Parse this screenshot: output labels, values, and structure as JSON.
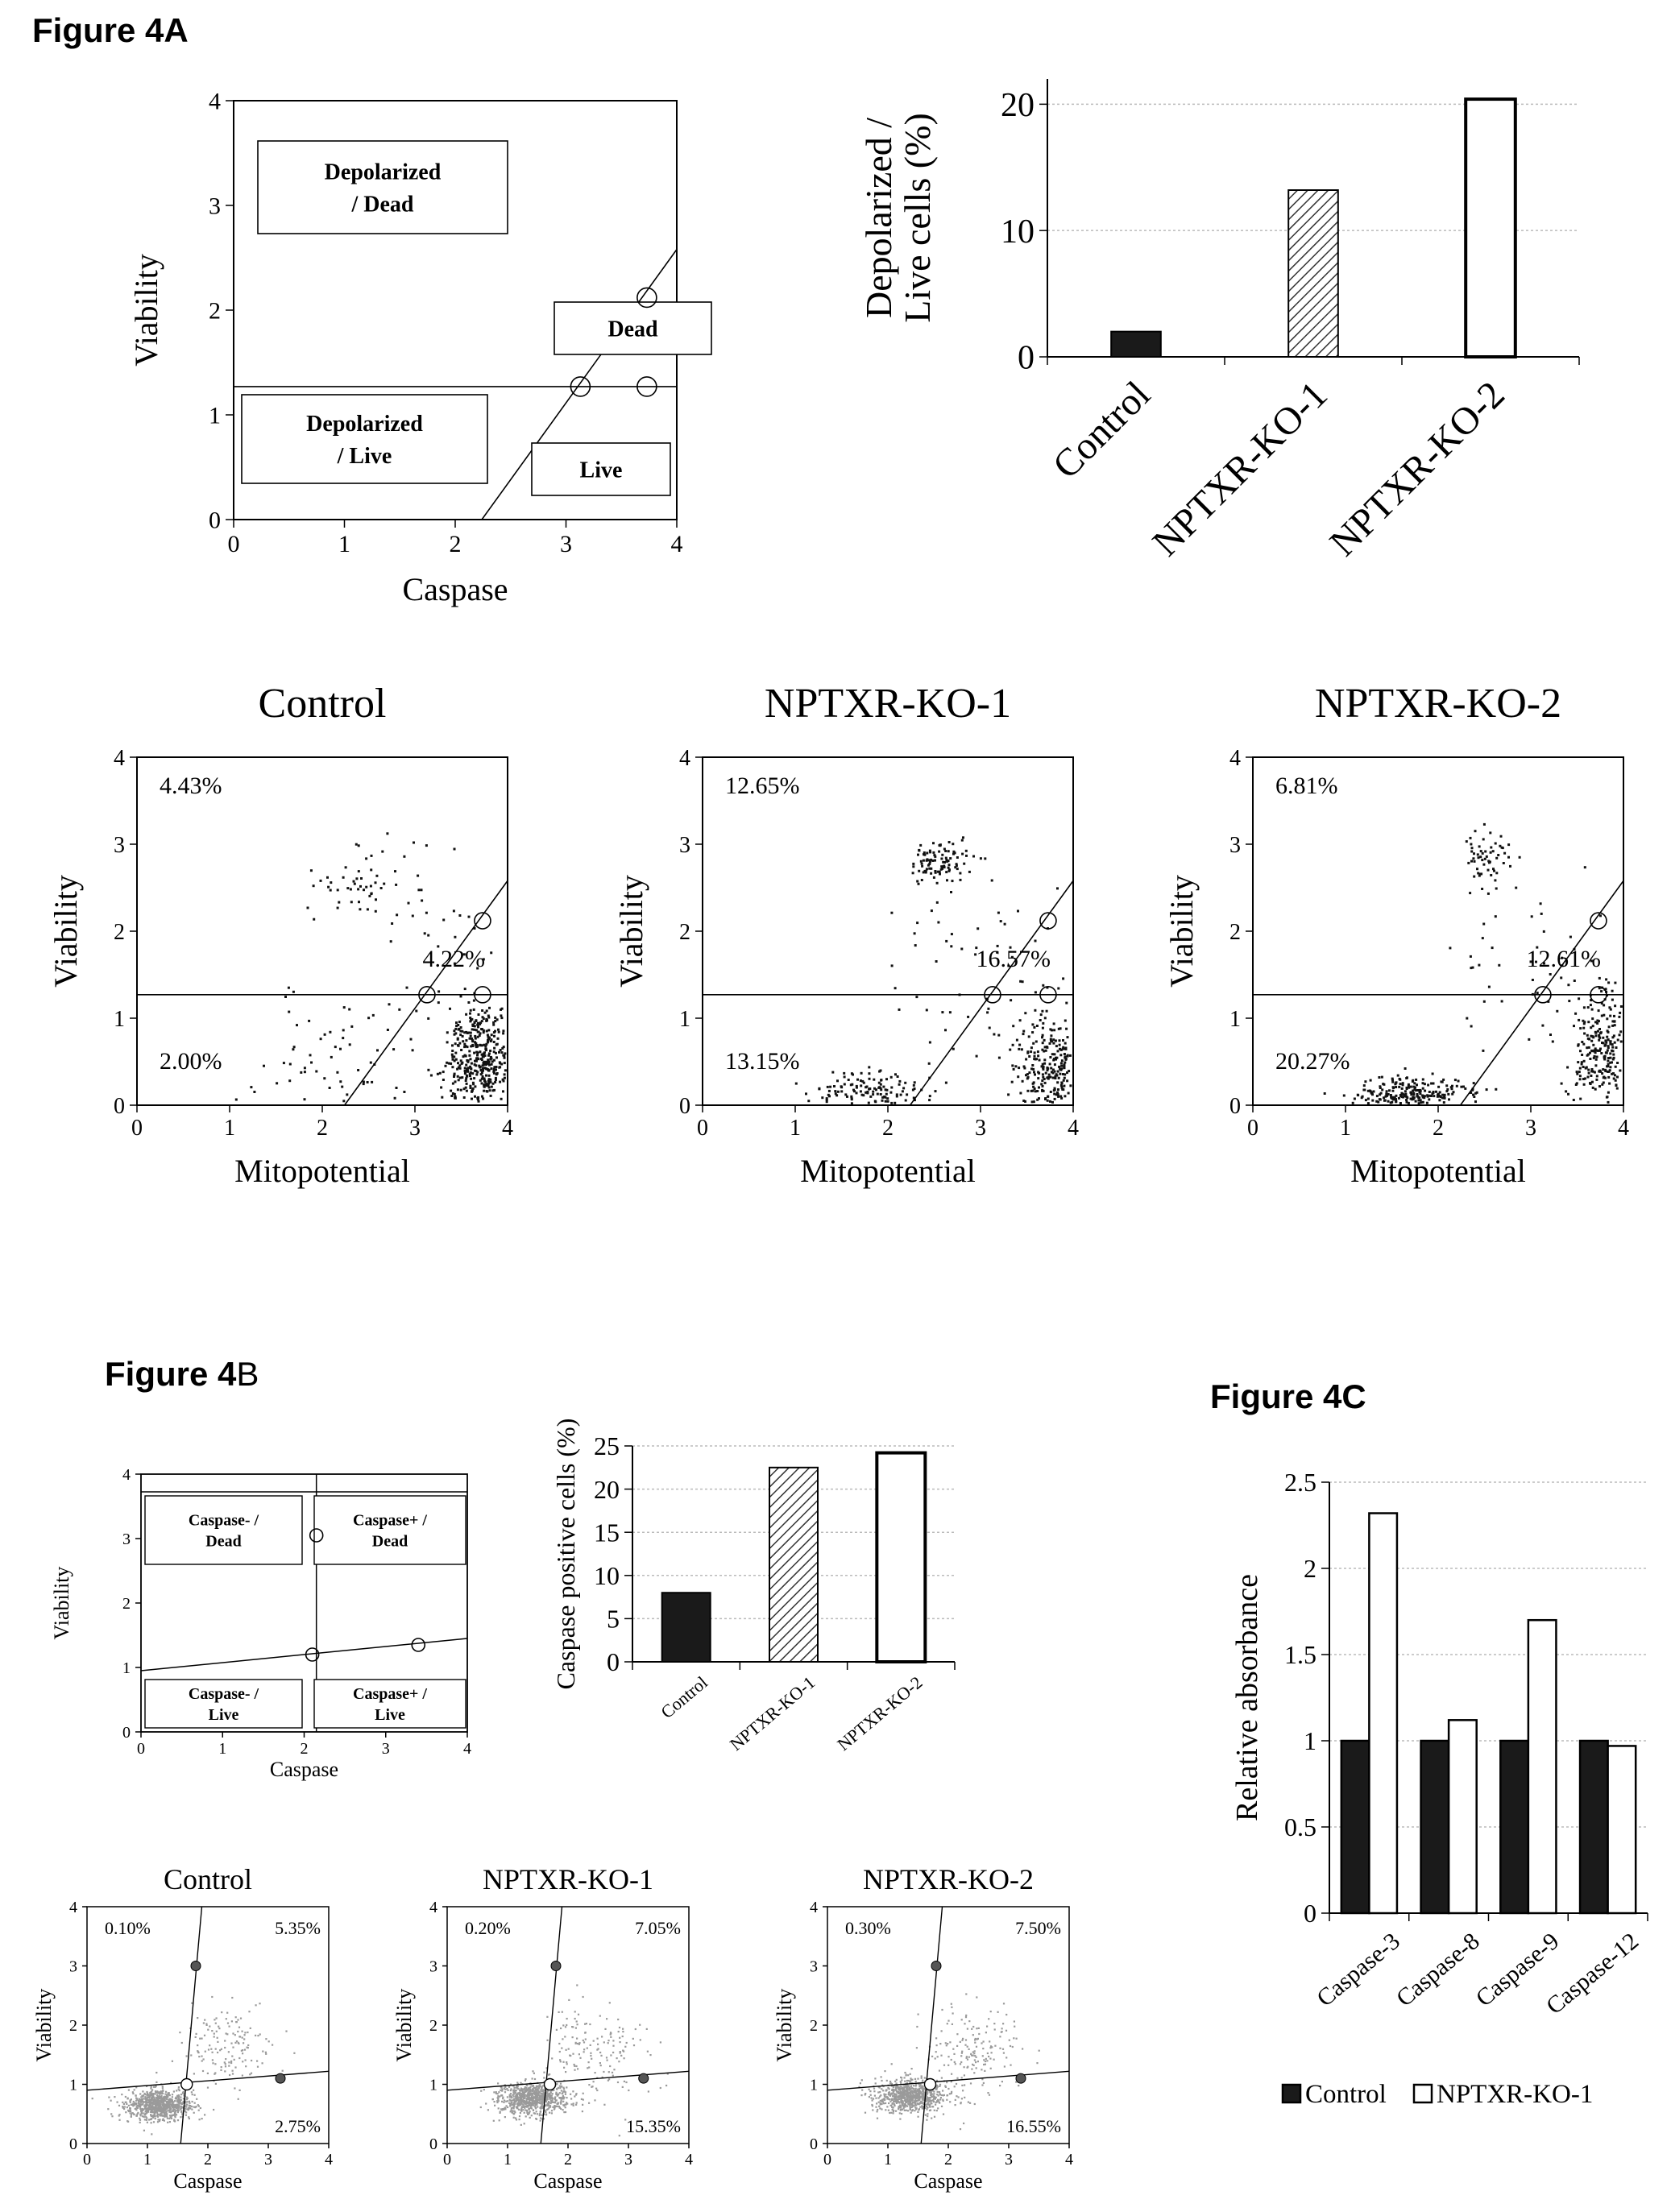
{
  "labels": {
    "fig4a": "Figure 4A",
    "fig4b_prefix": "Figure 4",
    "fig4b_suffix": "B",
    "fig4c": "Figure 4C"
  },
  "colors": {
    "ink": "#000000",
    "bar_dark": "#1a1a1a",
    "gridline": "#bbbbbb",
    "scatter_gray": "#9a9a9a"
  },
  "chart_data": [
    {
      "id": "gate4a",
      "type": "scatter",
      "xlabel": "Caspase",
      "ylabel": "Viability",
      "xlim": [
        0,
        4
      ],
      "ylim": [
        0,
        4
      ],
      "xticks": [
        "0",
        "1",
        "2",
        "3",
        "4"
      ],
      "yticks": [
        "0",
        "1",
        "2",
        "3",
        "4"
      ],
      "gates": [
        {
          "text": "Depolarized\n/ Dead"
        },
        {
          "text": "Dead"
        },
        {
          "text": "Depolarized\n/ Live"
        },
        {
          "text": "Live"
        }
      ],
      "gate_lines": {
        "horizontal_y": 1.27,
        "diagonal": [
          [
            2.24,
            0
          ],
          [
            4.0,
            2.58
          ]
        ]
      },
      "gate_markers": [
        [
          3.13,
          1.27
        ],
        [
          3.73,
          1.27
        ],
        [
          3.73,
          2.12
        ]
      ]
    },
    {
      "id": "bar4a",
      "type": "bar",
      "categories": [
        "Control",
        "NPTXR-KO-1",
        "NPTXR-KO-2"
      ],
      "values": [
        2.0,
        13.2,
        20.4
      ],
      "fills": [
        "solid",
        "hatched",
        "open"
      ],
      "ylabel": "Depolarized /\nLive cells (%)",
      "ylim": [
        0,
        22
      ],
      "yticks": [
        "0",
        "10",
        "20"
      ],
      "grid": true
    },
    {
      "id": "control4a",
      "type": "scatter",
      "title": "Control",
      "xlabel": "Mitopotential",
      "ylabel": "Viability",
      "xlim": [
        0,
        4
      ],
      "ylim": [
        0,
        4
      ],
      "xticks": [
        "0",
        "1",
        "2",
        "3",
        "4"
      ],
      "yticks": [
        "0",
        "1",
        "2",
        "3",
        "4"
      ],
      "quadrants": {
        "top_left": "4.43%",
        "top_right": "4.22%",
        "bottom_left": "2.00%"
      },
      "gate_lines": {
        "horizontal_y": 1.27,
        "diagonal": [
          [
            2.24,
            0
          ],
          [
            4.0,
            2.58
          ]
        ]
      },
      "clusters": [
        {
          "x": 3.7,
          "y": 0.55,
          "sx": 0.17,
          "sy": 0.32,
          "n": 430
        },
        {
          "x": 2.2,
          "y": 0.55,
          "sx": 0.55,
          "sy": 0.45,
          "n": 70
        },
        {
          "x": 2.45,
          "y": 2.55,
          "sx": 0.3,
          "sy": 0.25,
          "n": 55
        },
        {
          "x": 3.3,
          "y": 1.8,
          "sx": 0.3,
          "sy": 0.55,
          "n": 25
        }
      ]
    },
    {
      "id": "ko1_4a",
      "type": "scatter",
      "title": "NPTXR-KO-1",
      "xlabel": "Mitopotential",
      "ylabel": "Viability",
      "xlim": [
        0,
        4
      ],
      "ylim": [
        0,
        4
      ],
      "xticks": [
        "0",
        "1",
        "2",
        "3",
        "4"
      ],
      "yticks": [
        "0",
        "1",
        "2",
        "3",
        "4"
      ],
      "quadrants": {
        "top_left": "12.65%",
        "top_right": "16.57%",
        "bottom_left": "13.15%"
      },
      "gate_lines": {
        "horizontal_y": 1.27,
        "diagonal": [
          [
            2.24,
            0
          ],
          [
            4.0,
            2.58
          ]
        ]
      },
      "clusters": [
        {
          "x": 3.75,
          "y": 0.45,
          "sx": 0.2,
          "sy": 0.3,
          "n": 300
        },
        {
          "x": 1.8,
          "y": 0.15,
          "sx": 0.3,
          "sy": 0.12,
          "n": 150
        },
        {
          "x": 2.55,
          "y": 2.8,
          "sx": 0.15,
          "sy": 0.12,
          "n": 100
        },
        {
          "x": 3.0,
          "y": 1.6,
          "sx": 0.5,
          "sy": 0.6,
          "n": 60
        }
      ]
    },
    {
      "id": "ko2_4a",
      "type": "scatter",
      "title": "NPTXR-KO-2",
      "xlabel": "Mitopotential",
      "ylabel": "Viability",
      "xlim": [
        0,
        4
      ],
      "ylim": [
        0,
        4
      ],
      "xticks": [
        "0",
        "1",
        "2",
        "3",
        "4"
      ],
      "yticks": [
        "0",
        "1",
        "2",
        "3",
        "4"
      ],
      "quadrants": {
        "top_left": "6.81%",
        "top_right": "12.61%",
        "bottom_left": "20.27%"
      },
      "gate_lines": {
        "horizontal_y": 1.27,
        "diagonal": [
          [
            2.24,
            0
          ],
          [
            4.0,
            2.58
          ]
        ]
      },
      "clusters": [
        {
          "x": 3.8,
          "y": 0.6,
          "sx": 0.17,
          "sy": 0.35,
          "n": 280
        },
        {
          "x": 1.7,
          "y": 0.12,
          "sx": 0.3,
          "sy": 0.1,
          "n": 260
        },
        {
          "x": 2.5,
          "y": 2.85,
          "sx": 0.15,
          "sy": 0.15,
          "n": 60
        },
        {
          "x": 3.1,
          "y": 1.6,
          "sx": 0.5,
          "sy": 0.6,
          "n": 50
        }
      ]
    },
    {
      "id": "gate4b",
      "type": "scatter",
      "xlabel": "Caspase",
      "ylabel": "Viability",
      "xlim": [
        0,
        4
      ],
      "ylim": [
        0,
        4
      ],
      "xticks": [
        "0",
        "1",
        "2",
        "3",
        "4"
      ],
      "yticks": [
        "0",
        "1",
        "2",
        "3",
        "4"
      ],
      "gates": [
        {
          "text": "Caspase- /\nDead"
        },
        {
          "text": "Caspase+ /\nDead"
        },
        {
          "text": "Caspase- /\nLive"
        },
        {
          "text": "Caspase+ /\nLive"
        }
      ],
      "gate_markers": [
        [
          2.15,
          3.05
        ],
        [
          2.1,
          1.2
        ],
        [
          3.4,
          1.35
        ]
      ]
    },
    {
      "id": "bar4b",
      "type": "bar",
      "categories": [
        "Control",
        "NPTXR-KO-1",
        "NPTXR-KO-2"
      ],
      "values": [
        8.0,
        22.5,
        24.2
      ],
      "fills": [
        "solid",
        "hatched",
        "open"
      ],
      "ylabel": "Caspase positive cells (%)",
      "ylim": [
        0,
        25
      ],
      "yticks": [
        "0",
        "5",
        "10",
        "15",
        "20",
        "25"
      ],
      "grid": true
    },
    {
      "id": "control4b",
      "type": "scatter",
      "title": "Control",
      "xlabel": "Caspase",
      "ylabel": "Viability",
      "xlim": [
        0,
        4
      ],
      "ylim": [
        0,
        4
      ],
      "xticks": [
        "0",
        "1",
        "2",
        "3",
        "4"
      ],
      "yticks": [
        "0",
        "1",
        "2",
        "3",
        "4"
      ],
      "quadrants": {
        "top_left": "0.10%",
        "top_right": "5.35%",
        "bottom_right": "2.75%"
      },
      "gate_markers": [
        [
          1.8,
          3.0
        ],
        [
          1.65,
          1.0
        ],
        [
          3.2,
          1.1
        ]
      ],
      "clusters": [
        {
          "x": 1.2,
          "y": 0.65,
          "sx": 0.28,
          "sy": 0.13,
          "n": 850
        },
        {
          "x": 2.3,
          "y": 1.6,
          "sx": 0.4,
          "sy": 0.35,
          "n": 150
        }
      ]
    },
    {
      "id": "ko1_4b",
      "type": "scatter",
      "title": "NPTXR-KO-1",
      "xlabel": "Caspase",
      "ylabel": "Viability",
      "xlim": [
        0,
        4
      ],
      "ylim": [
        0,
        4
      ],
      "xticks": [
        "0",
        "1",
        "2",
        "3",
        "4"
      ],
      "yticks": [
        "0",
        "1",
        "2",
        "3",
        "4"
      ],
      "quadrants": {
        "top_left": "0.20%",
        "top_right": "7.05%",
        "bottom_right": "15.35%"
      },
      "gate_markers": [
        [
          1.8,
          3.0
        ],
        [
          1.7,
          1.0
        ],
        [
          3.25,
          1.1
        ]
      ],
      "clusters": [
        {
          "x": 1.4,
          "y": 0.75,
          "sx": 0.3,
          "sy": 0.14,
          "n": 800
        },
        {
          "x": 2.4,
          "y": 1.5,
          "sx": 0.45,
          "sy": 0.4,
          "n": 170
        }
      ]
    },
    {
      "id": "ko2_4b",
      "type": "scatter",
      "title": "NPTXR-KO-2",
      "xlabel": "Caspase",
      "ylabel": "Viability",
      "xlim": [
        0,
        4
      ],
      "ylim": [
        0,
        4
      ],
      "xticks": [
        "0",
        "1",
        "2",
        "3",
        "4"
      ],
      "yticks": [
        "0",
        "1",
        "2",
        "3",
        "4"
      ],
      "quadrants": {
        "top_left": "0.30%",
        "top_right": "7.50%",
        "bottom_right": "16.55%"
      },
      "gate_markers": [
        [
          1.8,
          3.0
        ],
        [
          1.7,
          1.0
        ],
        [
          3.2,
          1.1
        ]
      ],
      "clusters": [
        {
          "x": 1.4,
          "y": 0.8,
          "sx": 0.3,
          "sy": 0.14,
          "n": 800
        },
        {
          "x": 2.4,
          "y": 1.5,
          "sx": 0.45,
          "sy": 0.4,
          "n": 180
        }
      ]
    },
    {
      "id": "bar4c",
      "type": "bar",
      "categories": [
        "Caspase-3",
        "Caspase-8",
        "Caspase-9",
        "Caspase-12"
      ],
      "series": [
        {
          "name": "Control",
          "values": [
            1.0,
            1.0,
            1.0,
            1.0
          ],
          "fill": "solid"
        },
        {
          "name": "NPTXR-KO-1",
          "values": [
            2.32,
            1.12,
            1.7,
            0.97
          ],
          "fill": "open"
        }
      ],
      "ylabel": "Relative absorbance",
      "ylim": [
        0,
        2.5
      ],
      "yticks": [
        "0",
        "0.5",
        "1",
        "1.5",
        "2",
        "2.5"
      ],
      "legend": "bottom",
      "grid": true
    }
  ]
}
